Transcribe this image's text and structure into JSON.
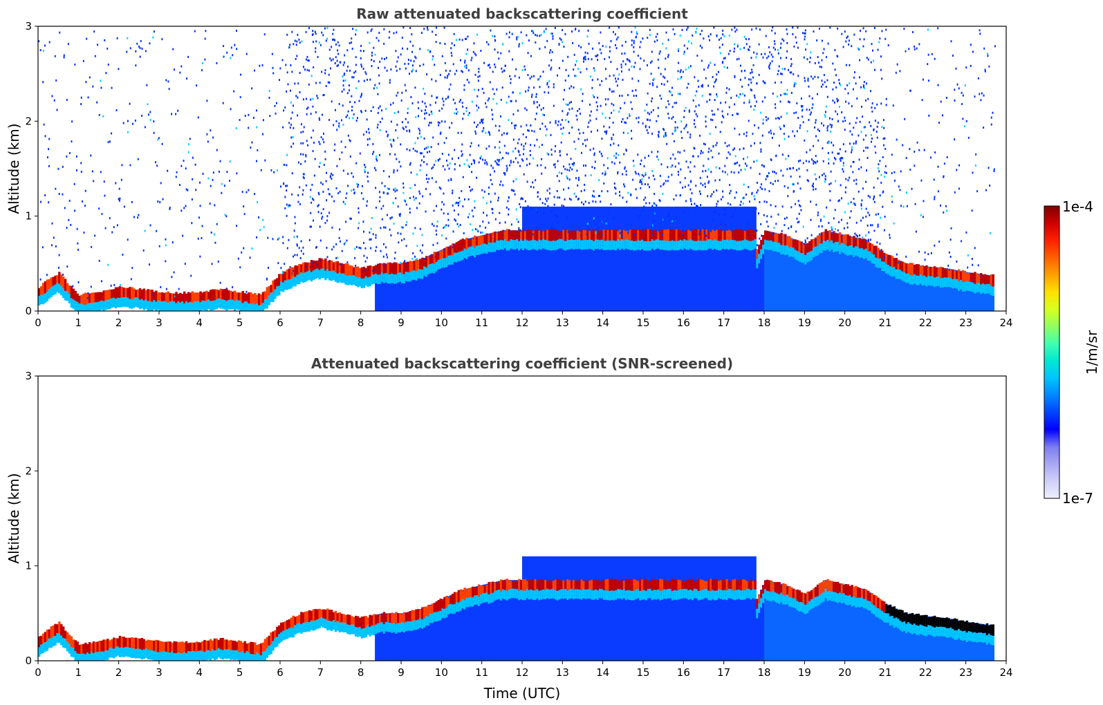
{
  "chart_data": [
    {
      "type": "heatmap",
      "title": "Raw attenuated backscattering coefficient",
      "xlabel": "",
      "ylabel": "Altitude (km)",
      "xlim": [
        0,
        24
      ],
      "ylim": [
        0,
        3
      ],
      "x_ticks": [
        "0",
        "1",
        "2",
        "3",
        "4",
        "5",
        "6",
        "7",
        "8",
        "9",
        "10",
        "11",
        "12",
        "13",
        "14",
        "15",
        "16",
        "17",
        "18",
        "19",
        "20",
        "21",
        "22",
        "23",
        "24"
      ],
      "y_ticks": [
        "0",
        "1",
        "2",
        "3"
      ],
      "data_end_time": 23.7,
      "screened": false,
      "layers": [
        {
          "x": [
            0,
            0.3,
            0.5,
            0.8,
            1.0,
            1.5,
            2.0,
            2.5,
            3.0,
            3.5,
            4.0,
            4.5,
            5.0,
            5.5,
            6.0,
            6.5,
            7.0,
            7.5,
            8.0,
            8.5,
            9.0,
            9.5,
            10.0,
            10.5,
            11.0,
            11.5,
            12.0
          ],
          "y": [
            0.2,
            0.3,
            0.35,
            0.2,
            0.12,
            0.15,
            0.2,
            0.18,
            0.15,
            0.14,
            0.15,
            0.18,
            0.15,
            0.12,
            0.35,
            0.45,
            0.5,
            0.45,
            0.4,
            0.45,
            0.45,
            0.5,
            0.6,
            0.7,
            0.75,
            0.8,
            0.8
          ]
        },
        {
          "x": [
            17.8,
            18.0,
            18.5,
            19.0,
            19.5,
            20.0,
            20.5,
            21.0,
            21.5,
            22.0,
            22.5,
            23.0,
            23.7
          ],
          "y": [
            0.6,
            0.8,
            0.75,
            0.65,
            0.8,
            0.75,
            0.7,
            0.55,
            0.45,
            0.42,
            0.4,
            0.36,
            0.32
          ]
        }
      ]
    },
    {
      "type": "heatmap",
      "title": "Attenuated backscattering coefficient (SNR-screened)",
      "xlabel": "Time (UTC)",
      "ylabel": "Altitude (km)",
      "xlim": [
        0,
        24
      ],
      "ylim": [
        0,
        3
      ],
      "x_ticks": [
        "0",
        "1",
        "2",
        "3",
        "4",
        "5",
        "6",
        "7",
        "8",
        "9",
        "10",
        "11",
        "12",
        "13",
        "14",
        "15",
        "16",
        "17",
        "18",
        "19",
        "20",
        "21",
        "22",
        "23",
        "24"
      ],
      "y_ticks": [
        "0",
        "1",
        "2",
        "3"
      ],
      "data_end_time": 23.7,
      "screened": true,
      "layers": [
        {
          "x": [
            0,
            0.3,
            0.5,
            0.8,
            1.0,
            1.5,
            2.0,
            2.5,
            3.0,
            3.5,
            4.0,
            4.5,
            5.0,
            5.5,
            6.0,
            6.5,
            7.0,
            7.5,
            8.0,
            8.5,
            9.0,
            9.5,
            10.0,
            10.5,
            11.0,
            11.5,
            12.0
          ],
          "y": [
            0.2,
            0.3,
            0.35,
            0.2,
            0.12,
            0.15,
            0.2,
            0.18,
            0.15,
            0.14,
            0.15,
            0.18,
            0.15,
            0.12,
            0.35,
            0.45,
            0.5,
            0.45,
            0.4,
            0.45,
            0.45,
            0.5,
            0.6,
            0.7,
            0.75,
            0.8,
            0.8
          ]
        },
        {
          "x": [
            17.8,
            18.0,
            18.5,
            19.0,
            19.5,
            20.0,
            20.5,
            21.0,
            21.5,
            22.0,
            22.5,
            23.0,
            23.7
          ],
          "y": [
            0.6,
            0.8,
            0.75,
            0.65,
            0.8,
            0.75,
            0.7,
            0.55,
            0.45,
            0.42,
            0.4,
            0.36,
            0.32
          ]
        }
      ]
    }
  ],
  "colorbar": {
    "label": "1/m/sr",
    "max_label": "1e-4",
    "min_label": "1e-7",
    "scale": "log",
    "colors": [
      "#eeeeff",
      "#d0d0f8",
      "#a8a8f4",
      "#7c7cf0",
      "#0000ff",
      "#0044ff",
      "#0088ff",
      "#00c4ff",
      "#00e8d0",
      "#40ffb0",
      "#90ff60",
      "#d8ff20",
      "#ffe000",
      "#ffa000",
      "#ff6000",
      "#ff2000",
      "#d00000",
      "#800000"
    ]
  }
}
